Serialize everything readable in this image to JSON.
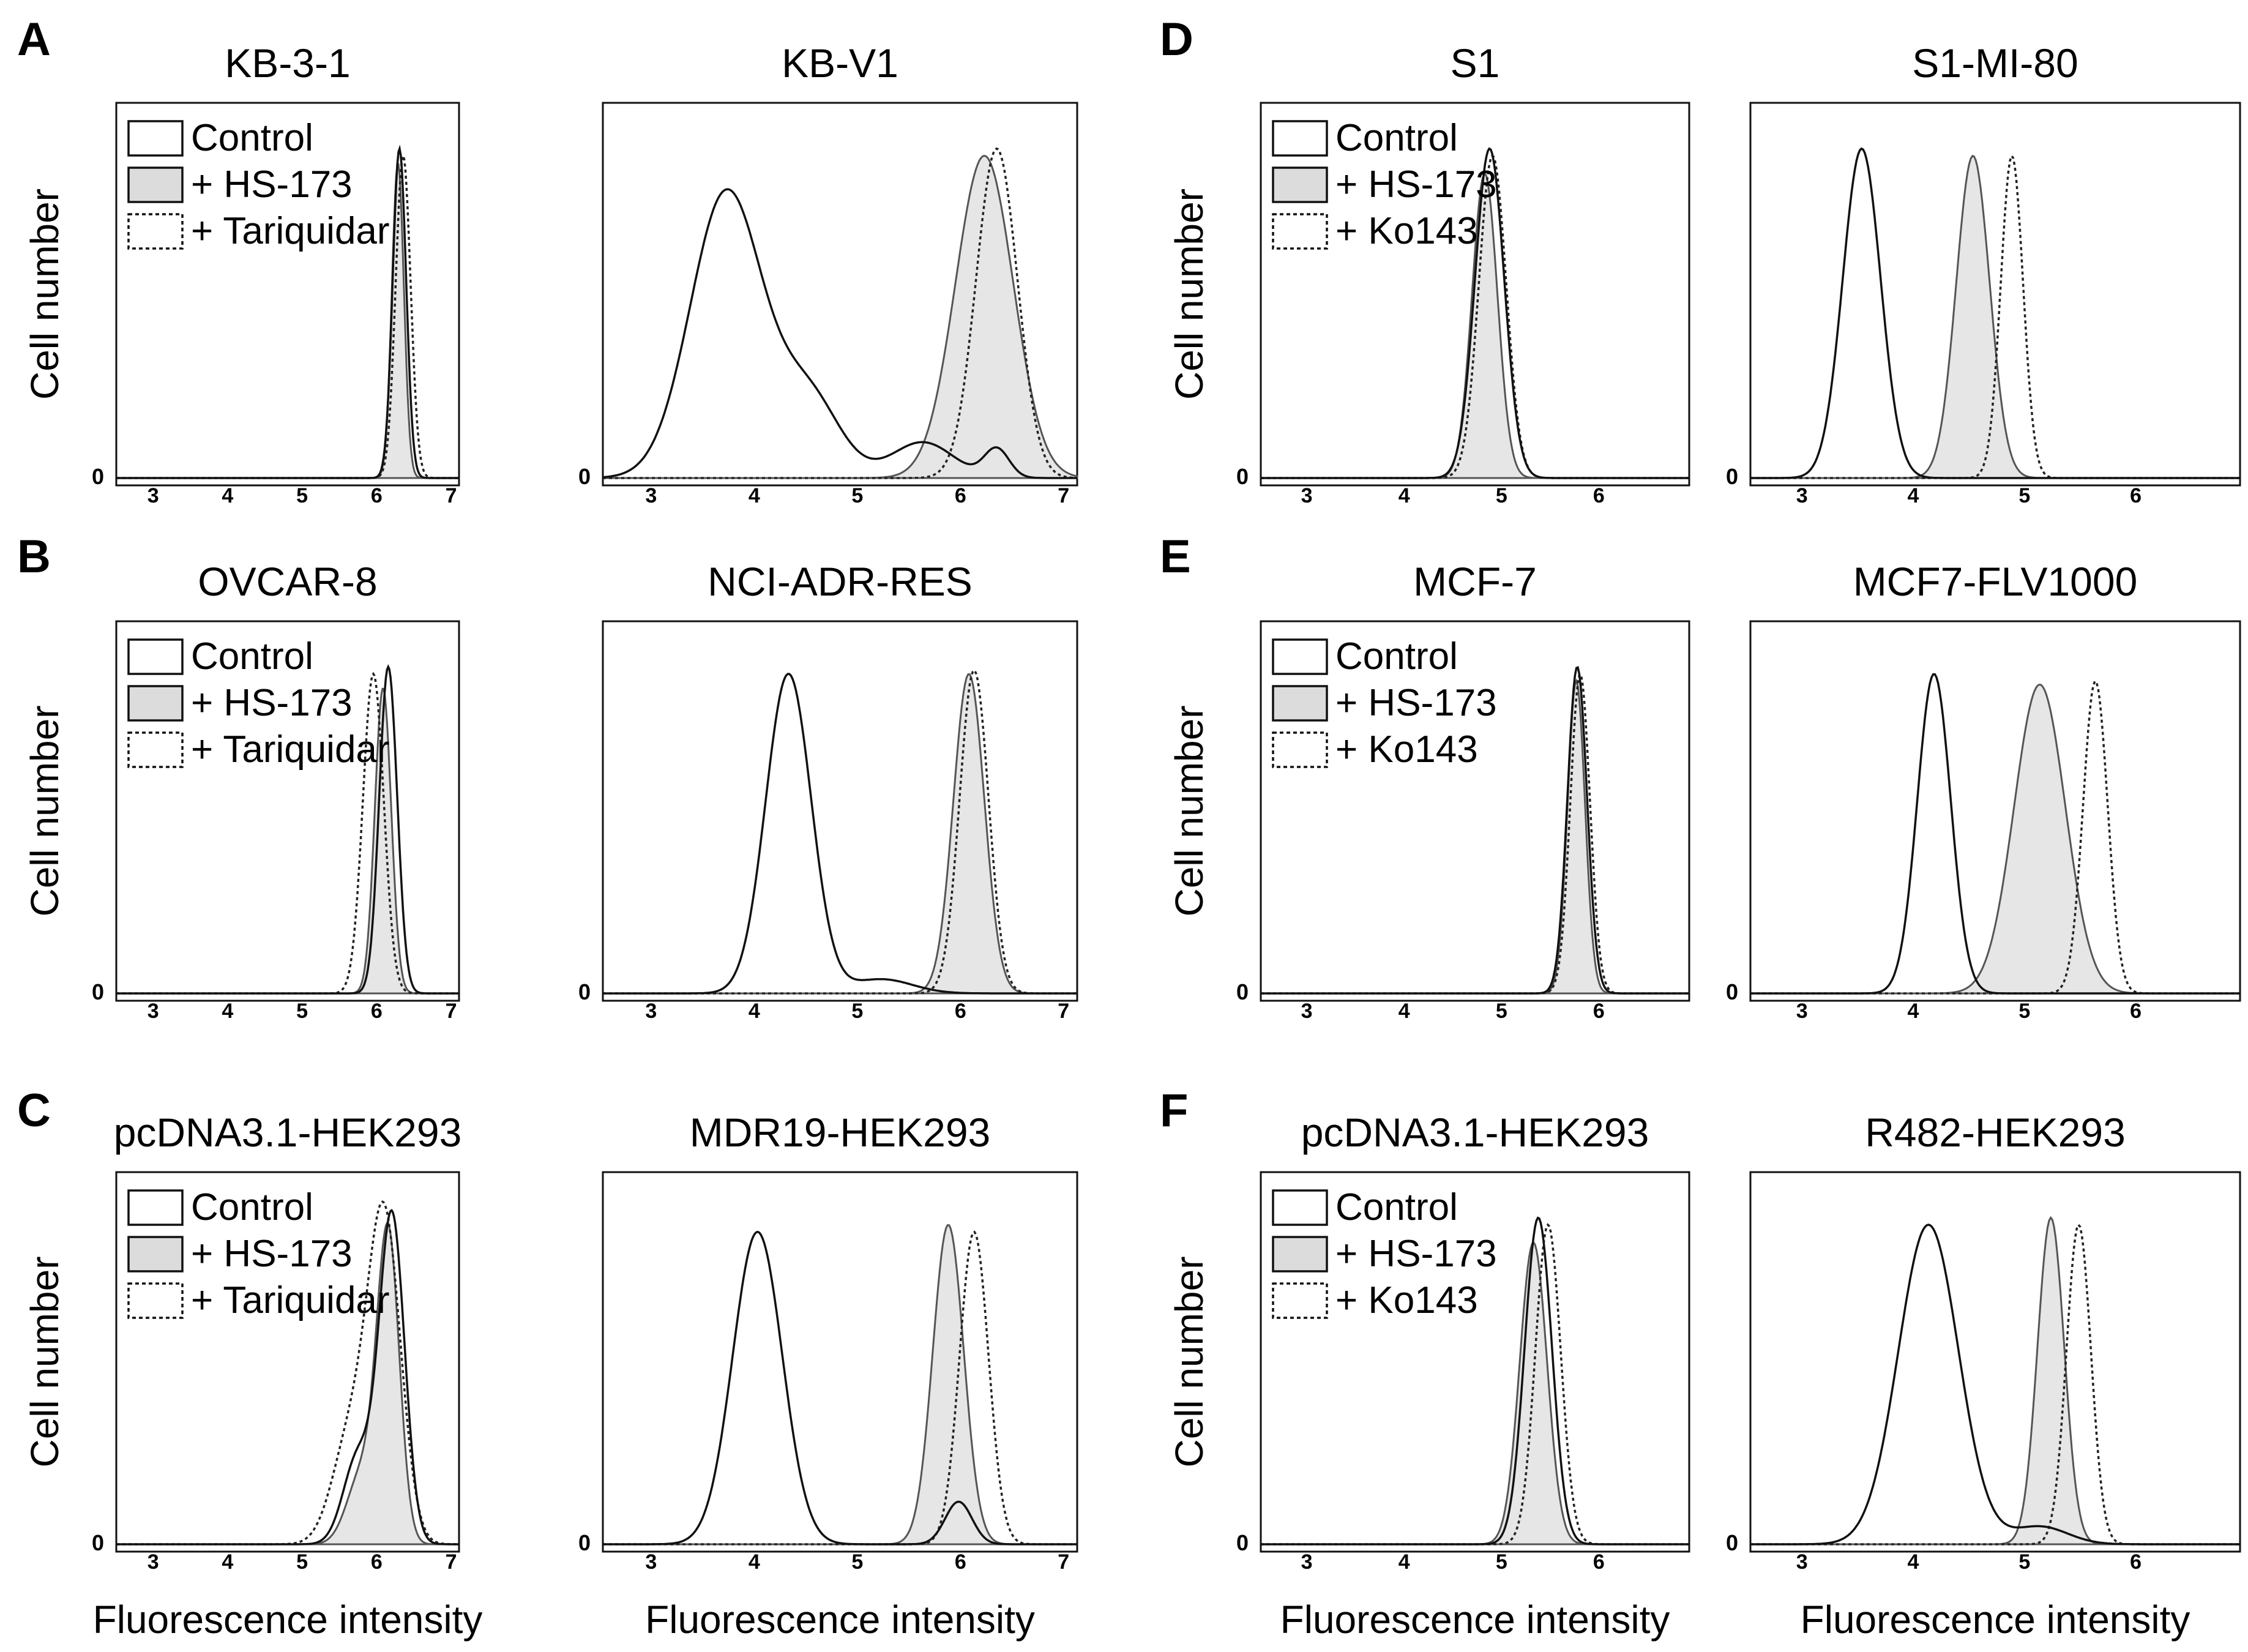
{
  "figure": {
    "y_axis_label": "Cell number",
    "x_axis_label": "Fluorescence intensity",
    "y_zero_label": "0"
  },
  "chart_data": [
    {
      "type": "area",
      "panel": "A",
      "title": "KB-3-1",
      "legend": [
        "Control",
        "+ HS-173",
        "+ Tariquidar"
      ],
      "xscale": "log",
      "xticks": [
        3,
        4,
        5,
        6,
        7
      ],
      "xlim": [
        2.6,
        7.2
      ],
      "series": [
        {
          "name": "Control",
          "style": "solid",
          "peaks": [
            {
              "mu": 6.4,
              "sd": 0.09,
              "h": 0.92
            }
          ]
        },
        {
          "name": "+ HS-173",
          "style": "filled",
          "peaks": [
            {
              "mu": 6.38,
              "sd": 0.08,
              "h": 0.88
            }
          ]
        },
        {
          "name": "+ Tariquidar",
          "style": "dotted",
          "peaks": [
            {
              "mu": 6.45,
              "sd": 0.1,
              "h": 0.9
            }
          ]
        }
      ]
    },
    {
      "type": "area",
      "panel": "",
      "title": "KB-V1",
      "legend": [],
      "xscale": "log",
      "xticks": [
        3,
        4,
        5,
        6,
        7
      ],
      "xlim": [
        2.6,
        7.2
      ],
      "series": [
        {
          "name": "Control",
          "style": "solid",
          "peaks": [
            {
              "mu": 3.8,
              "sd": 0.35,
              "h": 0.8
            },
            {
              "mu": 4.6,
              "sd": 0.3,
              "h": 0.22
            },
            {
              "mu": 5.7,
              "sd": 0.3,
              "h": 0.1
            },
            {
              "mu": 6.42,
              "sd": 0.12,
              "h": 0.08
            }
          ]
        },
        {
          "name": "+ HS-173",
          "style": "filled",
          "peaks": [
            {
              "mu": 6.3,
              "sd": 0.28,
              "h": 0.9
            }
          ]
        },
        {
          "name": "+ Tariquidar",
          "style": "dotted",
          "peaks": [
            {
              "mu": 6.42,
              "sd": 0.2,
              "h": 0.92
            }
          ]
        }
      ]
    },
    {
      "type": "area",
      "panel": "B",
      "title": "OVCAR-8",
      "legend": [
        "Control",
        "+ HS-173",
        "+ Tariquidar"
      ],
      "xscale": "log",
      "xticks": [
        3,
        4,
        5,
        6,
        7
      ],
      "xlim": [
        2.6,
        7.2
      ],
      "series": [
        {
          "name": "Control",
          "style": "solid",
          "peaks": [
            {
              "mu": 6.25,
              "sd": 0.12,
              "h": 0.92
            }
          ]
        },
        {
          "name": "+ HS-173",
          "style": "filled",
          "peaks": [
            {
              "mu": 6.18,
              "sd": 0.11,
              "h": 0.86
            }
          ]
        },
        {
          "name": "+ Tariquidar",
          "style": "dotted",
          "peaks": [
            {
              "mu": 6.05,
              "sd": 0.14,
              "h": 0.9
            }
          ]
        }
      ]
    },
    {
      "type": "area",
      "panel": "",
      "title": "NCI-ADR-RES",
      "legend": [],
      "xscale": "log",
      "xticks": [
        3,
        4,
        5,
        6,
        7
      ],
      "xlim": [
        2.6,
        7.2
      ],
      "series": [
        {
          "name": "Control",
          "style": "solid",
          "peaks": [
            {
              "mu": 4.4,
              "sd": 0.22,
              "h": 0.9
            },
            {
              "mu": 5.3,
              "sd": 0.3,
              "h": 0.04
            }
          ]
        },
        {
          "name": "+ HS-173",
          "style": "filled",
          "peaks": [
            {
              "mu": 6.15,
              "sd": 0.15,
              "h": 0.9
            }
          ]
        },
        {
          "name": "+ Tariquidar",
          "style": "dotted",
          "peaks": [
            {
              "mu": 6.2,
              "sd": 0.14,
              "h": 0.91
            }
          ]
        }
      ]
    },
    {
      "type": "area",
      "panel": "C",
      "title": "pcDNA3.1-HEK293",
      "legend": [
        "Control",
        "+ HS-173",
        "+ Tariquidar"
      ],
      "xscale": "log",
      "xticks": [
        3,
        4,
        5,
        6,
        7
      ],
      "xlim": [
        2.6,
        7.2
      ],
      "series": [
        {
          "name": "Control",
          "style": "solid",
          "peaks": [
            {
              "mu": 6.3,
              "sd": 0.17,
              "h": 0.92
            },
            {
              "mu": 5.85,
              "sd": 0.2,
              "h": 0.25
            }
          ]
        },
        {
          "name": "+ HS-173",
          "style": "filled",
          "peaks": [
            {
              "mu": 6.25,
              "sd": 0.15,
              "h": 0.86
            },
            {
              "mu": 5.9,
              "sd": 0.2,
              "h": 0.2
            }
          ]
        },
        {
          "name": "+ Tariquidar",
          "style": "dotted",
          "peaks": [
            {
              "mu": 6.2,
              "sd": 0.22,
              "h": 0.9
            },
            {
              "mu": 5.75,
              "sd": 0.25,
              "h": 0.3
            }
          ]
        }
      ]
    },
    {
      "type": "area",
      "panel": "",
      "title": "MDR19-HEK293",
      "legend": [],
      "xscale": "log",
      "xticks": [
        3,
        4,
        5,
        6,
        7
      ],
      "xlim": [
        2.6,
        7.2
      ],
      "series": [
        {
          "name": "Control",
          "style": "solid",
          "peaks": [
            {
              "mu": 4.1,
              "sd": 0.24,
              "h": 0.88
            },
            {
              "mu": 6.05,
              "sd": 0.13,
              "h": 0.12
            }
          ]
        },
        {
          "name": "+ HS-173",
          "style": "filled",
          "peaks": [
            {
              "mu": 5.95,
              "sd": 0.15,
              "h": 0.9
            }
          ]
        },
        {
          "name": "+ Tariquidar",
          "style": "dotted",
          "peaks": [
            {
              "mu": 6.2,
              "sd": 0.14,
              "h": 0.88
            }
          ]
        }
      ]
    },
    {
      "type": "area",
      "panel": "D",
      "title": "S1",
      "legend": [
        "Control",
        "+ HS-173",
        "+ Ko143"
      ],
      "xscale": "log",
      "xticks": [
        3,
        4,
        5,
        6
      ],
      "xlim": [
        2.6,
        7.0
      ],
      "series": [
        {
          "name": "Control",
          "style": "solid",
          "peaks": [
            {
              "mu": 4.95,
              "sd": 0.15,
              "h": 0.92
            }
          ]
        },
        {
          "name": "+ HS-173",
          "style": "filled",
          "peaks": [
            {
              "mu": 4.9,
              "sd": 0.13,
              "h": 0.85
            }
          ]
        },
        {
          "name": "+ Ko143",
          "style": "dotted",
          "peaks": [
            {
              "mu": 4.98,
              "sd": 0.14,
              "h": 0.9
            }
          ]
        }
      ]
    },
    {
      "type": "area",
      "panel": "",
      "title": "S1-MI-80",
      "legend": [],
      "xscale": "log",
      "xticks": [
        3,
        4,
        5,
        6
      ],
      "xlim": [
        2.6,
        7.0
      ],
      "series": [
        {
          "name": "Control",
          "style": "solid",
          "peaks": [
            {
              "mu": 3.6,
              "sd": 0.17,
              "h": 0.92
            }
          ]
        },
        {
          "name": "+ HS-173",
          "style": "filled",
          "peaks": [
            {
              "mu": 4.6,
              "sd": 0.15,
              "h": 0.9
            }
          ]
        },
        {
          "name": "+ Ko143",
          "style": "dotted",
          "peaks": [
            {
              "mu": 4.95,
              "sd": 0.1,
              "h": 0.9
            }
          ]
        }
      ]
    },
    {
      "type": "area",
      "panel": "E",
      "title": "MCF-7",
      "legend": [
        "Control",
        "+ HS-173",
        "+ Ko143"
      ],
      "xscale": "log",
      "xticks": [
        3,
        4,
        5,
        6
      ],
      "xlim": [
        2.6,
        7.0
      ],
      "series": [
        {
          "name": "Control",
          "style": "solid",
          "peaks": [
            {
              "mu": 5.85,
              "sd": 0.1,
              "h": 0.92
            }
          ]
        },
        {
          "name": "+ HS-173",
          "style": "filled",
          "peaks": [
            {
              "mu": 5.84,
              "sd": 0.09,
              "h": 0.88
            }
          ]
        },
        {
          "name": "+ Ko143",
          "style": "dotted",
          "peaks": [
            {
              "mu": 5.88,
              "sd": 0.1,
              "h": 0.9
            }
          ]
        }
      ]
    },
    {
      "type": "area",
      "panel": "",
      "title": "MCF7-FLV1000",
      "legend": [],
      "xscale": "log",
      "xticks": [
        3,
        4,
        5,
        6
      ],
      "xlim": [
        2.6,
        7.0
      ],
      "series": [
        {
          "name": "Control",
          "style": "solid",
          "peaks": [
            {
              "mu": 4.25,
              "sd": 0.15,
              "h": 0.9
            }
          ]
        },
        {
          "name": "+ HS-173",
          "style": "filled",
          "peaks": [
            {
              "mu": 5.2,
              "sd": 0.23,
              "h": 0.87
            }
          ]
        },
        {
          "name": "+ Ko143",
          "style": "dotted",
          "peaks": [
            {
              "mu": 5.7,
              "sd": 0.11,
              "h": 0.88
            }
          ]
        }
      ]
    },
    {
      "type": "area",
      "panel": "F",
      "title": "pcDNA3.1-HEK293",
      "legend": [
        "Control",
        "+ HS-173",
        "+ Ko143"
      ],
      "xscale": "log",
      "xticks": [
        3,
        4,
        5,
        6
      ],
      "xlim": [
        2.6,
        7.0
      ],
      "series": [
        {
          "name": "Control",
          "style": "solid",
          "peaks": [
            {
              "mu": 5.45,
              "sd": 0.14,
              "h": 0.92
            }
          ]
        },
        {
          "name": "+ HS-173",
          "style": "filled",
          "peaks": [
            {
              "mu": 5.4,
              "sd": 0.14,
              "h": 0.85
            }
          ]
        },
        {
          "name": "+ Ko143",
          "style": "dotted",
          "peaks": [
            {
              "mu": 5.55,
              "sd": 0.13,
              "h": 0.9
            }
          ]
        }
      ]
    },
    {
      "type": "area",
      "panel": "",
      "title": "R482-HEK293",
      "legend": [],
      "xscale": "log",
      "xticks": [
        3,
        4,
        5,
        6
      ],
      "xlim": [
        2.6,
        7.0
      ],
      "series": [
        {
          "name": "Control",
          "style": "solid",
          "peaks": [
            {
              "mu": 4.2,
              "sd": 0.27,
              "h": 0.9
            },
            {
              "mu": 5.2,
              "sd": 0.25,
              "h": 0.05
            }
          ]
        },
        {
          "name": "+ HS-173",
          "style": "filled",
          "peaks": [
            {
              "mu": 5.3,
              "sd": 0.12,
              "h": 0.92
            }
          ]
        },
        {
          "name": "+ Ko143",
          "style": "dotted",
          "peaks": [
            {
              "mu": 5.55,
              "sd": 0.11,
              "h": 0.9
            }
          ]
        }
      ]
    }
  ]
}
